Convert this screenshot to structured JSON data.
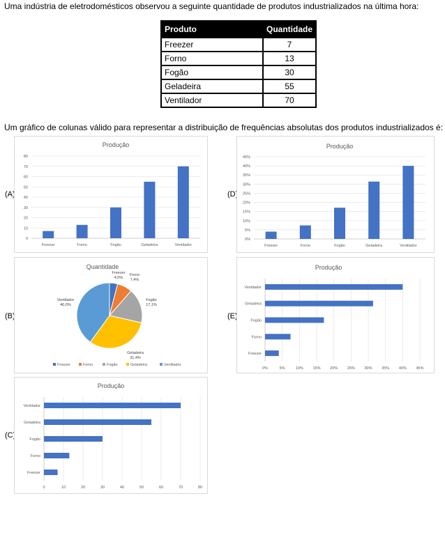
{
  "intro": "Uma indústria de eletrodomésticos observou a seguinte quantidade de produtos industrializados na última hora:",
  "table": {
    "headers": [
      "Produto",
      "Quantidade"
    ],
    "rows": [
      [
        "Freezer",
        "7"
      ],
      [
        "Forno",
        "13"
      ],
      [
        "Fogão",
        "30"
      ],
      [
        "Geladeira",
        "55"
      ],
      [
        "Ventilador",
        "70"
      ]
    ]
  },
  "question": "Um gráfico de colunas válido para representar a distribuição de frequências absolutas dos produtos industrializados é:",
  "options": {
    "A": "(A)",
    "B": "(B)",
    "C": "(C)",
    "D": "(D)",
    "E": "(E)"
  },
  "chart_data": [
    {
      "id": "A",
      "type": "bar",
      "title": "Produção",
      "categories": [
        "Freezer",
        "Forno",
        "Fogão",
        "Geladeira",
        "Ventilador"
      ],
      "values": [
        7,
        13,
        30,
        55,
        70
      ],
      "ylim": [
        0,
        80
      ],
      "yticks": [
        "0",
        "10",
        "20",
        "30",
        "40",
        "50",
        "60",
        "70",
        "80"
      ],
      "grid": true,
      "color": "#4472c4"
    },
    {
      "id": "D",
      "type": "bar",
      "title": "Produção",
      "categories": [
        "Freezer",
        "Forno",
        "Fogão",
        "Geladeira",
        "Ventilador"
      ],
      "values": [
        4.0,
        7.4,
        17.1,
        31.4,
        40.0
      ],
      "ylim": [
        0,
        45
      ],
      "yticks": [
        "0%",
        "5%",
        "10%",
        "15%",
        "20%",
        "25%",
        "30%",
        "35%",
        "40%",
        "45%"
      ],
      "grid": true,
      "color": "#4472c4"
    },
    {
      "id": "B",
      "type": "pie",
      "title": "Quantidade",
      "categories": [
        "Freezer",
        "Forno",
        "Fogão",
        "Geladeira",
        "Ventilador"
      ],
      "values": [
        4.0,
        7.4,
        17.1,
        31.4,
        40.0
      ],
      "data_labels": [
        [
          "Freezer",
          "4,0%"
        ],
        [
          "Forno",
          "7,4%"
        ],
        [
          "Fogão",
          "17,1%"
        ],
        [
          "Geladeira",
          "31,4%"
        ],
        [
          "Ventilador",
          "40,0%"
        ]
      ],
      "colors": [
        "#4472c4",
        "#ed7d31",
        "#a5a5a5",
        "#ffc000",
        "#5b9bd5"
      ],
      "legend": "bottom"
    },
    {
      "id": "E",
      "type": "bar",
      "orientation": "horizontal",
      "title": "Produção",
      "categories": [
        "Freezer",
        "Forno",
        "Fogão",
        "Geladeira",
        "Ventilador"
      ],
      "values": [
        4.0,
        7.4,
        17.1,
        31.4,
        40.0
      ],
      "xlim": [
        0,
        45
      ],
      "xticks": [
        "0%",
        "5%",
        "10%",
        "15%",
        "20%",
        "25%",
        "30%",
        "35%",
        "40%",
        "45%"
      ],
      "grid": true,
      "color": "#4472c4"
    },
    {
      "id": "C",
      "type": "bar",
      "orientation": "horizontal",
      "title": "Produção",
      "categories": [
        "Freezer",
        "Forno",
        "Fogão",
        "Geladeira",
        "Ventilador"
      ],
      "values": [
        7,
        13,
        30,
        55,
        70
      ],
      "xlim": [
        0,
        80
      ],
      "xticks": [
        "0",
        "10",
        "20",
        "30",
        "40",
        "50",
        "60",
        "70",
        "80"
      ],
      "grid": true,
      "color": "#4472c4"
    }
  ]
}
